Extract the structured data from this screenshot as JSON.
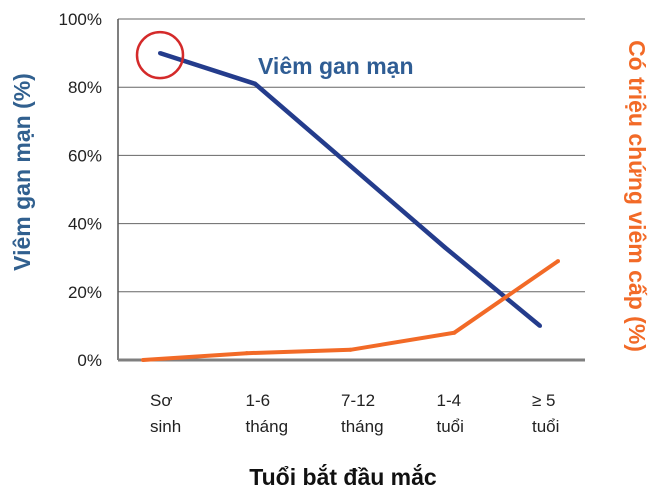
{
  "chart_data": {
    "type": "line",
    "categories": [
      "Sơ sinh",
      "1-6 tháng",
      "7-12 tháng",
      "1-4 tuổi",
      "≥ 5 tuổi"
    ],
    "series": [
      {
        "name": "Viêm gan mạn",
        "values": [
          90,
          81,
          57,
          33,
          10
        ],
        "color": "#243c8c"
      },
      {
        "values": [
          0,
          2,
          3,
          8,
          29
        ],
        "color": "#f26a27"
      }
    ],
    "xlabel": "Tuổi bắt đầu mắc",
    "ylabel": "Viêm gan mạn (%)",
    "y2label": "Có triệu chứng viêm cấp (%)",
    "ylim": [
      0,
      100
    ],
    "yticks": [
      "0%",
      "20%",
      "40%",
      "60%",
      "80%",
      "100%"
    ],
    "grid": true,
    "highlight": {
      "series": 0,
      "point": 0,
      "color": "#d42a2a"
    },
    "colors": {
      "ylabel": "#31608f",
      "y2label": "#f26a27",
      "series_label": "#2f5d94",
      "axis": "#7f7f7f",
      "grid": "#666666"
    }
  }
}
